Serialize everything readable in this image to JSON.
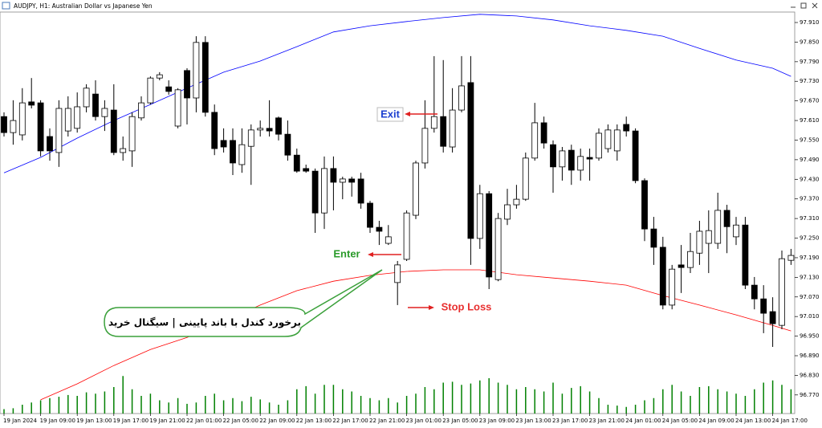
{
  "chart_data": {
    "type": "candlestick",
    "title": "AUDJPY, H1:  Australian Dollar vs Japanese Yen",
    "categories": [
      "19 Jan 2024",
      null,
      null,
      null,
      "19 Jan 09:00",
      null,
      null,
      null,
      "19 Jan 13:00",
      null,
      null,
      null,
      "19 Jan 17:00",
      null,
      null,
      null,
      "19 Jan 21:00",
      null,
      null,
      null,
      "22 Jan 01:00",
      null,
      null,
      null,
      "22 Jan 05:00",
      null,
      null,
      null,
      "22 Jan 09:00",
      null,
      null,
      null,
      "22 Jan 13:00",
      null,
      null,
      null,
      "22 Jan 17:00",
      null,
      null,
      null,
      "22 Jan 21:00",
      null,
      null,
      null,
      "23 Jan 01:00",
      null,
      null,
      null,
      "23 Jan 05:00",
      null,
      null,
      null,
      "23 Jan 09:00",
      null,
      null,
      null,
      "23 Jan 13:00",
      null,
      null,
      null,
      "23 Jan 17:00",
      null,
      null,
      null,
      "23 Jan 21:00",
      null,
      null,
      null,
      "24 Jan 01:00",
      null,
      null,
      null,
      "24 Jan 05:00",
      null,
      null,
      null,
      "24 Jan 09:00",
      null,
      null,
      null,
      "24 Jan 13:00",
      null,
      null,
      null,
      "24 Jan 17:00",
      null,
      null
    ],
    "ohlc": [
      [
        97.622,
        97.635,
        97.561,
        97.573
      ],
      [
        97.573,
        97.672,
        97.536,
        97.61
      ],
      [
        97.566,
        97.709,
        97.549,
        97.664
      ],
      [
        97.667,
        97.74,
        97.647,
        97.657
      ],
      [
        97.664,
        97.672,
        97.5,
        97.517
      ],
      [
        97.561,
        97.586,
        97.487,
        97.517
      ],
      [
        97.512,
        97.672,
        97.468,
        97.647
      ],
      [
        97.578,
        97.684,
        97.561,
        97.647
      ],
      [
        97.586,
        97.696,
        97.573,
        97.652
      ],
      [
        97.652,
        97.721,
        97.635,
        97.709
      ],
      [
        97.691,
        97.733,
        97.61,
        97.622
      ],
      [
        97.622,
        97.672,
        97.578,
        97.647
      ],
      [
        97.642,
        97.721,
        97.504,
        97.512
      ],
      [
        97.512,
        97.561,
        97.487,
        97.524
      ],
      [
        97.517,
        97.635,
        97.468,
        97.622
      ],
      [
        97.618,
        97.684,
        97.61,
        97.664
      ],
      [
        97.664,
        97.745,
        97.659,
        97.74
      ],
      [
        97.74,
        97.758,
        97.733,
        97.75
      ],
      [
        97.713,
        97.733,
        97.689,
        97.699
      ],
      [
        97.593,
        97.709,
        97.586,
        97.704
      ],
      [
        97.763,
        97.77,
        97.598,
        97.679
      ],
      [
        97.679,
        97.868,
        97.635,
        97.849
      ],
      [
        97.849,
        97.868,
        97.622,
        97.635
      ],
      [
        97.635,
        97.659,
        97.504,
        97.524
      ],
      [
        97.549,
        97.586,
        97.512,
        97.529
      ],
      [
        97.549,
        97.586,
        97.443,
        97.48
      ],
      [
        97.475,
        97.586,
        97.45,
        97.536
      ],
      [
        97.531,
        97.598,
        97.413,
        97.581
      ],
      [
        97.581,
        97.61,
        97.561,
        97.586
      ],
      [
        97.586,
        97.672,
        97.561,
        97.578
      ],
      [
        97.618,
        97.622,
        97.549,
        97.568
      ],
      [
        97.568,
        97.61,
        97.487,
        97.504
      ],
      [
        97.504,
        97.524,
        97.45,
        97.455
      ],
      [
        97.463,
        97.475,
        97.45,
        97.455
      ],
      [
        97.455,
        97.463,
        97.266,
        97.327
      ],
      [
        97.327,
        97.5,
        97.278,
        97.463
      ],
      [
        97.463,
        97.5,
        97.335,
        97.421
      ],
      [
        97.421,
        97.438,
        97.369,
        97.431
      ],
      [
        97.431,
        97.438,
        97.377,
        97.421
      ],
      [
        97.431,
        97.45,
        97.34,
        97.357
      ],
      [
        97.357,
        97.364,
        97.266,
        97.283
      ],
      [
        97.283,
        97.303,
        97.229,
        97.271
      ],
      [
        97.234,
        97.29,
        97.229,
        97.254
      ],
      [
        97.114,
        97.18,
        97.045,
        97.168
      ],
      [
        97.185,
        97.335,
        97.18,
        97.327
      ],
      [
        97.32,
        97.487,
        97.308,
        97.48
      ],
      [
        97.48,
        97.672,
        97.463,
        97.586
      ],
      [
        97.586,
        97.807,
        97.573,
        97.622
      ],
      [
        97.622,
        97.795,
        97.512,
        97.531
      ],
      [
        97.529,
        97.709,
        97.512,
        97.642
      ],
      [
        97.642,
        97.807,
        97.635,
        97.716
      ],
      [
        97.726,
        97.807,
        97.168,
        97.249
      ],
      [
        97.249,
        97.413,
        97.217,
        97.386
      ],
      [
        97.386,
        97.394,
        97.094,
        97.131
      ],
      [
        97.123,
        97.327,
        97.118,
        97.31
      ],
      [
        97.308,
        97.401,
        97.29,
        97.352
      ],
      [
        97.352,
        97.413,
        97.34,
        97.369
      ],
      [
        97.369,
        97.512,
        97.364,
        97.495
      ],
      [
        97.495,
        97.664,
        97.487,
        97.603
      ],
      [
        97.603,
        97.622,
        97.524,
        97.541
      ],
      [
        97.536,
        97.549,
        97.389,
        97.468
      ],
      [
        97.468,
        97.529,
        97.426,
        97.517
      ],
      [
        97.519,
        97.536,
        97.413,
        97.458
      ],
      [
        97.458,
        97.524,
        97.426,
        97.5
      ],
      [
        97.497,
        97.524,
        97.426,
        97.492
      ],
      [
        97.495,
        97.586,
        97.487,
        97.571
      ],
      [
        97.524,
        97.598,
        97.512,
        97.581
      ],
      [
        97.517,
        97.598,
        97.487,
        97.581
      ],
      [
        97.598,
        97.622,
        97.561,
        97.578
      ],
      [
        97.578,
        97.586,
        97.418,
        97.426
      ],
      [
        97.426,
        97.433,
        97.241,
        97.278
      ],
      [
        97.278,
        97.315,
        97.168,
        97.222
      ],
      [
        97.222,
        97.254,
        97.032,
        97.045
      ],
      [
        97.045,
        97.168,
        97.032,
        97.155
      ],
      [
        97.168,
        97.229,
        97.082,
        97.16
      ],
      [
        97.16,
        97.266,
        97.143,
        97.209
      ],
      [
        97.204,
        97.303,
        97.168,
        97.271
      ],
      [
        97.234,
        97.335,
        97.143,
        97.273
      ],
      [
        97.234,
        97.389,
        97.217,
        97.335
      ],
      [
        97.335,
        97.352,
        97.204,
        97.285
      ],
      [
        97.254,
        97.315,
        97.229,
        97.29
      ],
      [
        97.29,
        97.315,
        97.094,
        97.106
      ],
      [
        97.106,
        97.131,
        97.032,
        97.064
      ],
      [
        97.064,
        97.106,
        96.959,
        97.02
      ],
      [
        97.025,
        97.069,
        96.917,
        96.988
      ],
      [
        96.983,
        97.212,
        96.971,
        97.187
      ],
      [
        97.182,
        97.217,
        97.168,
        97.197
      ]
    ],
    "bull_color": "#ffffff",
    "bear_color": "#000000",
    "bands": [
      {
        "color": "#0000ff",
        "x": [
          0,
          4,
          8,
          12,
          16,
          20,
          24,
          28,
          32,
          36,
          40,
          44,
          48,
          52,
          56,
          60,
          64,
          68,
          72,
          76,
          80,
          84,
          86
        ],
        "values": [
          97.45,
          97.497,
          97.556,
          97.61,
          97.659,
          97.709,
          97.758,
          97.792,
          97.836,
          97.881,
          97.9,
          97.913,
          97.925,
          97.935,
          97.93,
          97.918,
          97.9,
          97.886,
          97.868,
          97.831,
          97.795,
          97.77,
          97.745
        ]
      },
      {
        "color": "#ff0000",
        "x": [
          4,
          8,
          12,
          16,
          20,
          24,
          28,
          32,
          36,
          40,
          44,
          48,
          52,
          56,
          60,
          64,
          68,
          72,
          76,
          80,
          84,
          86
        ],
        "values": [
          96.755,
          96.804,
          96.86,
          96.909,
          96.946,
          96.995,
          97.045,
          97.089,
          97.118,
          97.136,
          97.148,
          97.153,
          97.153,
          97.138,
          97.128,
          97.118,
          97.106,
          97.074,
          97.045,
          97.015,
          96.983,
          96.966
        ]
      }
    ],
    "volume": [
      10,
      12,
      20,
      25,
      30,
      35,
      38,
      42,
      40,
      48,
      45,
      50,
      60,
      85,
      55,
      40,
      45,
      30,
      25,
      35,
      22,
      25,
      40,
      45,
      30,
      35,
      28,
      38,
      32,
      25,
      20,
      30,
      55,
      62,
      45,
      65,
      65,
      55,
      50,
      40,
      35,
      30,
      35,
      25,
      40,
      45,
      60,
      55,
      70,
      72,
      65,
      68,
      75,
      80,
      70,
      65,
      55,
      60,
      55,
      50,
      70,
      45,
      58,
      62,
      50,
      35,
      20,
      18,
      15,
      20,
      30,
      35,
      55,
      65,
      50,
      40,
      60,
      62,
      55,
      50,
      45,
      40,
      55,
      70,
      75,
      65,
      55
    ],
    "volume_color": "#008000",
    "volume_ylim": [
      0,
      100
    ],
    "ylim": [
      96.713,
      97.942
    ],
    "yticks": [
      {
        "value": 97.91,
        "label": "97.910"
      },
      {
        "value": 97.85,
        "label": "97.850"
      },
      {
        "value": 97.79,
        "label": "97.790"
      },
      {
        "value": 97.73,
        "label": "97.730"
      },
      {
        "value": 97.67,
        "label": "97.670"
      },
      {
        "value": 97.61,
        "label": "97.610"
      },
      {
        "value": 97.55,
        "label": "97.550"
      },
      {
        "value": 97.49,
        "label": "97.490"
      },
      {
        "value": 97.43,
        "label": "97.430"
      },
      {
        "value": 97.37,
        "label": "97.370"
      },
      {
        "value": 97.31,
        "label": "97.310"
      },
      {
        "value": 97.25,
        "label": "97.250"
      },
      {
        "value": 97.19,
        "label": "97.190"
      },
      {
        "value": 97.13,
        "label": "97.130"
      },
      {
        "value": 97.07,
        "label": "97.070"
      },
      {
        "value": 97.01,
        "label": "97.010"
      },
      {
        "value": 96.95,
        "label": "96.950"
      },
      {
        "value": 96.89,
        "label": "96.890"
      },
      {
        "value": 96.83,
        "label": "96.830"
      },
      {
        "value": 96.77,
        "label": "96.770"
      }
    ],
    "annotations": {
      "exit": "Exit",
      "enter": "Enter",
      "stop_loss": "Stop Loss",
      "callout": "برخورد کندل با باند پایینی | سیگنال خرید"
    }
  }
}
